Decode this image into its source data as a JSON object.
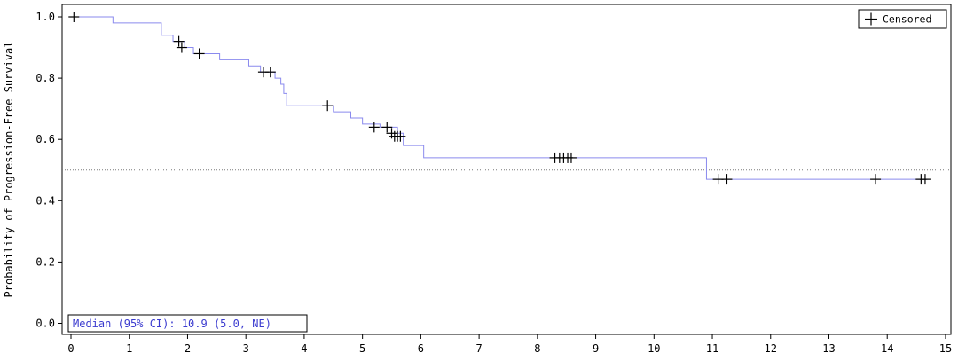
{
  "chart_data": {
    "type": "line",
    "ylabel": "Probability of Progression-Free Survival",
    "xlabel": "",
    "xlim": [
      0,
      15
    ],
    "ylim": [
      0,
      1
    ],
    "x_ticks": [
      0,
      1,
      2,
      3,
      4,
      5,
      6,
      7,
      8,
      9,
      10,
      11,
      12,
      13,
      14,
      15
    ],
    "y_ticks": [
      0.0,
      0.2,
      0.4,
      0.6,
      0.8,
      1.0
    ],
    "y_tick_labels": [
      "0.0",
      "0.2",
      "0.4",
      "0.6",
      "0.8",
      "1.0"
    ],
    "reference_line_y": 0.5,
    "legend": {
      "label": "Censored",
      "placement": "top-right"
    },
    "median_label": "Median (95% CI): 10.9 (5.0, NE)",
    "line_color": "#8a8aee",
    "series": [
      {
        "steps": [
          [
            0.0,
            1.0
          ],
          [
            0.72,
            0.98
          ],
          [
            1.55,
            0.94
          ],
          [
            1.75,
            0.92
          ],
          [
            1.95,
            0.9
          ],
          [
            2.1,
            0.88
          ],
          [
            2.55,
            0.86
          ],
          [
            3.05,
            0.84
          ],
          [
            3.25,
            0.82
          ],
          [
            3.5,
            0.8
          ],
          [
            3.6,
            0.78
          ],
          [
            3.65,
            0.75
          ],
          [
            3.7,
            0.71
          ],
          [
            4.5,
            0.69
          ],
          [
            4.8,
            0.67
          ],
          [
            5.0,
            0.65
          ],
          [
            5.3,
            0.64
          ],
          [
            5.6,
            0.62
          ],
          [
            5.7,
            0.58
          ],
          [
            6.05,
            0.54
          ],
          [
            10.9,
            0.47
          ],
          [
            14.7,
            0.47
          ]
        ],
        "censored": [
          [
            0.05,
            1.0
          ],
          [
            1.85,
            0.92
          ],
          [
            1.9,
            0.9
          ],
          [
            2.2,
            0.88
          ],
          [
            3.3,
            0.82
          ],
          [
            3.42,
            0.82
          ],
          [
            4.4,
            0.71
          ],
          [
            5.2,
            0.64
          ],
          [
            5.42,
            0.64
          ],
          [
            5.5,
            0.62
          ],
          [
            5.55,
            0.61
          ],
          [
            5.6,
            0.61
          ],
          [
            5.65,
            0.61
          ],
          [
            8.3,
            0.54
          ],
          [
            8.38,
            0.54
          ],
          [
            8.45,
            0.54
          ],
          [
            8.52,
            0.54
          ],
          [
            8.58,
            0.54
          ],
          [
            11.1,
            0.47
          ],
          [
            11.25,
            0.47
          ],
          [
            13.8,
            0.47
          ],
          [
            14.58,
            0.47
          ],
          [
            14.65,
            0.47
          ]
        ]
      }
    ]
  }
}
